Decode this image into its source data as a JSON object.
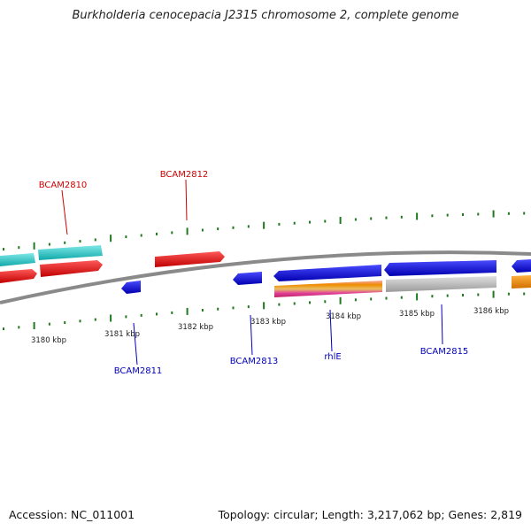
{
  "title": "Burkholderia cenocepacia J2315 chromosome 2, complete genome",
  "footer": {
    "accession": "Accession: NC_011001",
    "topology": "Topology: circular; Length: 3,217,062 bp; Genes: 2,819"
  },
  "colors": {
    "backbone": "#8a8a8a",
    "tick": "#1f7a1f",
    "forward_label": "#cc0000",
    "reverse_label": "#0000bb",
    "cyan": "#18c4c4",
    "red": "#e01010",
    "blue": "#1010e0",
    "gray": "#b8b8b8",
    "orange": "#f08c00",
    "multicolor": [
      "#f6a6a6",
      "#f08c00",
      "#e8c060",
      "#e0409a",
      "#c02060"
    ]
  },
  "kbp_labels": [
    "3180 kbp",
    "3181 kbp",
    "3182 kbp",
    "3183 kbp",
    "3184 kbp",
    "3185 kbp",
    "3186 kbp"
  ],
  "gene_labels": {
    "top": [
      "BCAM2810",
      "BCAM2812"
    ],
    "bottom": [
      "BCAM2811",
      "BCAM2813",
      "rhlE",
      "BCAM2815"
    ]
  }
}
